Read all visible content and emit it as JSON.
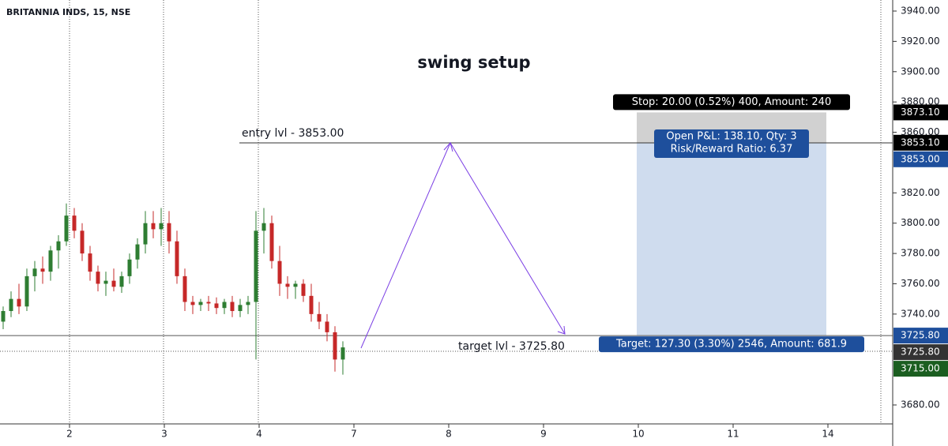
{
  "chart_data": {
    "type": "candlestick",
    "title": "BRITANNIA INDS, 15, NSE",
    "annotation_title": "swing setup",
    "up_color": "#2e7d32",
    "down_color": "#c62828",
    "xlim": [
      -0.4,
      112.6
    ],
    "xticks": [
      {
        "value": 8.4,
        "label": "2"
      },
      {
        "value": 20.4,
        "label": "3"
      },
      {
        "value": 32.4,
        "label": "4"
      },
      {
        "value": 44.4,
        "label": "7"
      },
      {
        "value": 56.4,
        "label": "8"
      },
      {
        "value": 68.4,
        "label": "9"
      },
      {
        "value": 80.4,
        "label": "10"
      },
      {
        "value": 92.4,
        "label": "11"
      },
      {
        "value": 104.4,
        "label": "14"
      }
    ],
    "ylim": [
      3667.5,
      3947.3
    ],
    "yticks": [
      {
        "value": 3680,
        "label": "3680.00"
      },
      {
        "value": 3740,
        "label": "3740.00"
      },
      {
        "value": 3760,
        "label": "3760.00"
      },
      {
        "value": 3780,
        "label": "3780.00"
      },
      {
        "value": 3800,
        "label": "3800.00"
      },
      {
        "value": 3820,
        "label": "3820.00"
      },
      {
        "value": 3860,
        "label": "3860.00"
      },
      {
        "value": 3880,
        "label": "3880.00"
      },
      {
        "value": 3900,
        "label": "3900.00"
      },
      {
        "value": 3920,
        "label": "3920.00"
      },
      {
        "value": 3940,
        "label": "3940.00"
      }
    ],
    "open": [
      3735,
      3742,
      3750,
      3745,
      3765,
      3770,
      3768,
      3782,
      3788,
      3805,
      3795,
      3780,
      3768,
      3760,
      3762,
      3758,
      3765,
      3776,
      3786,
      3800,
      3796,
      3800,
      3788,
      3765,
      3748,
      3746,
      3748,
      3747,
      3744,
      3748,
      3742,
      3746,
      3748,
      3795,
      3800,
      3775,
      3760,
      3758,
      3760,
      3752,
      3740,
      3735,
      3728,
      3710
    ],
    "high": [
      3745,
      3755,
      3760,
      3770,
      3775,
      3778,
      3785,
      3792,
      3813,
      3810,
      3800,
      3785,
      3772,
      3768,
      3770,
      3768,
      3780,
      3790,
      3808,
      3808,
      3810,
      3808,
      3795,
      3770,
      3752,
      3750,
      3752,
      3751,
      3750,
      3752,
      3750,
      3752,
      3808,
      3810,
      3805,
      3785,
      3765,
      3762,
      3763,
      3760,
      3748,
      3740,
      3732,
      3722
    ],
    "low": [
      3730,
      3738,
      3740,
      3742,
      3755,
      3760,
      3762,
      3770,
      3785,
      3790,
      3775,
      3762,
      3755,
      3752,
      3755,
      3754,
      3760,
      3770,
      3780,
      3790,
      3785,
      3780,
      3760,
      3742,
      3740,
      3742,
      3742,
      3740,
      3740,
      3738,
      3738,
      3740,
      3710,
      3780,
      3770,
      3752,
      3750,
      3750,
      3748,
      3735,
      3730,
      3722,
      3702,
      3700
    ],
    "close": [
      3742,
      3750,
      3745,
      3765,
      3770,
      3768,
      3782,
      3788,
      3805,
      3795,
      3780,
      3768,
      3760,
      3762,
      3758,
      3765,
      3776,
      3786,
      3800,
      3796,
      3800,
      3788,
      3765,
      3748,
      3746,
      3748,
      3747,
      3744,
      3748,
      3742,
      3746,
      3748,
      3795,
      3800,
      3775,
      3760,
      3758,
      3760,
      3752,
      3740,
      3735,
      3728,
      3710,
      3718
    ],
    "entry_label": "entry lvl - 3853.00",
    "entry": 3853,
    "target_label": "target lvl - 3725.80",
    "target": 3725.8,
    "position": {
      "x_range": [
        80.2,
        104.2
      ],
      "stop": 3873.1,
      "stop_text": "Stop: 20.00 (0.52%) 400, Amount: 240",
      "pnl_text": "Open P&L: 138.10, Qty: 3",
      "ratio_text": "Risk/Reward Ratio: 6.37",
      "target_text": "Target: 127.30 (3.30%) 2546, Amount: 681.9"
    },
    "price_tags": [
      {
        "value": 3873.1,
        "label": "3873.10",
        "color": "#000000"
      },
      {
        "value": 3853.1,
        "label": "3853.10",
        "color": "#000000"
      },
      {
        "value": 3853,
        "label": "3853.00",
        "color": "#1e4f9c"
      },
      {
        "value": 3725.8,
        "label": "3725.80",
        "color": "#1e4f9c"
      },
      {
        "value": 3725.8,
        "label": "3725.80",
        "color": "#333333"
      },
      {
        "value": 3715,
        "label": "3715.00",
        "color": "#1b5e20"
      }
    ]
  }
}
